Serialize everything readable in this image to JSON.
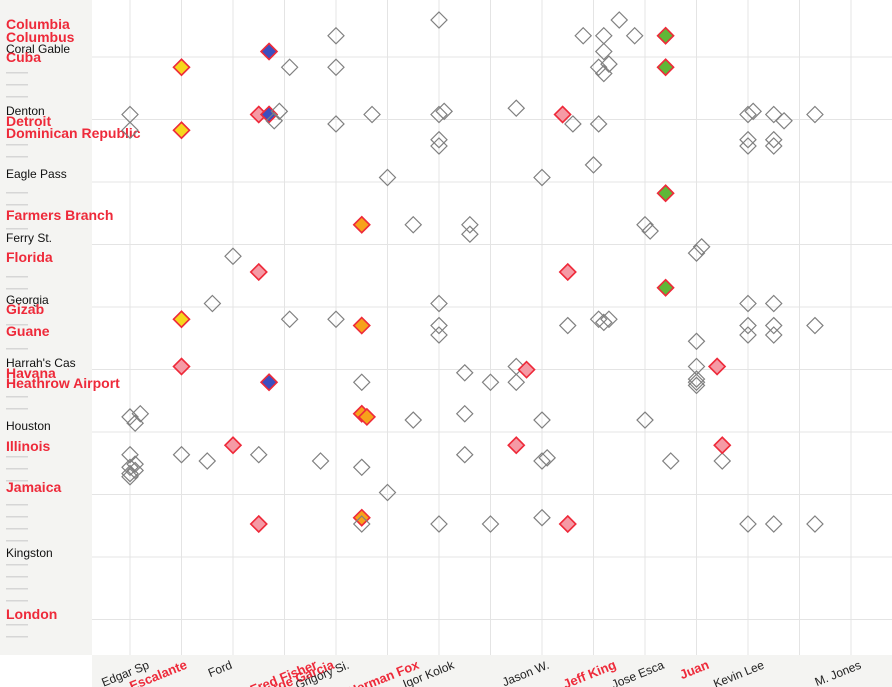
{
  "chart_data": {
    "type": "scatter",
    "title": "",
    "xlabel": "",
    "ylabel": "",
    "grid": true,
    "x_categories": [
      {
        "label": "Edgar Sp",
        "highlight": false
      },
      {
        "label": "Escalante",
        "highlight": true
      },
      {
        "label": "Ford",
        "highlight": false
      },
      {
        "label": "Fred Fisher",
        "highlight": true
      },
      {
        "label": "George Garcia",
        "highlight": true
      },
      {
        "label": "Grigory Si.",
        "highlight": false
      },
      {
        "label": "Herman Fox",
        "highlight": true
      },
      {
        "label": "Igor Kolok",
        "highlight": false
      },
      {
        "label": "Jason W.",
        "highlight": false
      },
      {
        "label": "Jeff King",
        "highlight": true
      },
      {
        "label": "Jose Esca",
        "highlight": false
      },
      {
        "label": "Juan",
        "highlight": true
      },
      {
        "label": "Kevin Lee",
        "highlight": false
      },
      {
        "label": "M. Jones",
        "highlight": false
      }
    ],
    "y_categories": [
      {
        "label": "Columbia",
        "highlight": true
      },
      {
        "label": "Columbus",
        "highlight": true
      },
      {
        "label": "Coral Gable",
        "highlight": false
      },
      {
        "label": "Cuba",
        "highlight": true
      },
      {
        "label": "Denton",
        "highlight": false
      },
      {
        "label": "Detroit",
        "highlight": true
      },
      {
        "label": "Dominican Republic",
        "highlight": true
      },
      {
        "label": "Eagle Pass",
        "highlight": false
      },
      {
        "label": "Farmers Branch",
        "highlight": true
      },
      {
        "label": "Ferry St.",
        "highlight": false
      },
      {
        "label": "Florida",
        "highlight": true
      },
      {
        "label": "Georgia",
        "highlight": false
      },
      {
        "label": "Gizab",
        "highlight": true
      },
      {
        "label": "Guane",
        "highlight": true
      },
      {
        "label": "Harrah's Cas",
        "highlight": false
      },
      {
        "label": "Havana",
        "highlight": true
      },
      {
        "label": "Heathrow Airport",
        "highlight": true
      },
      {
        "label": "Houston",
        "highlight": false
      },
      {
        "label": "Illinois",
        "highlight": true
      },
      {
        "label": "Jamaica",
        "highlight": true
      },
      {
        "label": "Kingston",
        "highlight": false
      },
      {
        "label": "London",
        "highlight": true
      }
    ],
    "colors": {
      "point_outline": "#808080",
      "yellow": "#f6d71c",
      "orange": "#f7a21a",
      "pink": "#f59aa5",
      "blue": "#3c4fc0",
      "green": "#5fb837",
      "highlight_stroke": "#ee2a3a",
      "highlight_text": "#ee2a3a",
      "grid": "#e4e4e4"
    },
    "points": [
      {
        "x": 7.0,
        "y": 0.0,
        "fill": "none"
      },
      {
        "x": 10.5,
        "y": 0.0,
        "fill": "none"
      },
      {
        "x": 5.0,
        "y": 0.5,
        "fill": "none"
      },
      {
        "x": 9.8,
        "y": 0.5,
        "fill": "none"
      },
      {
        "x": 10.2,
        "y": 0.5,
        "fill": "none"
      },
      {
        "x": 10.8,
        "y": 0.5,
        "fill": "none"
      },
      {
        "x": 11.4,
        "y": 0.5,
        "fill": "green"
      },
      {
        "x": 3.7,
        "y": 1.0,
        "fill": "blue"
      },
      {
        "x": 10.2,
        "y": 1.0,
        "fill": "none"
      },
      {
        "x": 2.0,
        "y": 1.5,
        "fill": "yellow"
      },
      {
        "x": 4.1,
        "y": 1.5,
        "fill": "none"
      },
      {
        "x": 5.0,
        "y": 1.5,
        "fill": "none"
      },
      {
        "x": 10.1,
        "y": 1.5,
        "fill": "none"
      },
      {
        "x": 10.3,
        "y": 1.4,
        "fill": "none"
      },
      {
        "x": 10.2,
        "y": 1.7,
        "fill": "none"
      },
      {
        "x": 11.4,
        "y": 1.5,
        "fill": "green"
      },
      {
        "x": 1.0,
        "y": 3.0,
        "fill": "none"
      },
      {
        "x": 3.5,
        "y": 3.0,
        "fill": "pink"
      },
      {
        "x": 3.7,
        "y": 3.0,
        "fill": "blue"
      },
      {
        "x": 3.9,
        "y": 2.9,
        "fill": "none"
      },
      {
        "x": 3.8,
        "y": 3.2,
        "fill": "none"
      },
      {
        "x": 5.0,
        "y": 3.3,
        "fill": "none"
      },
      {
        "x": 5.7,
        "y": 3.0,
        "fill": "none"
      },
      {
        "x": 7.0,
        "y": 3.0,
        "fill": "none"
      },
      {
        "x": 7.1,
        "y": 2.9,
        "fill": "none"
      },
      {
        "x": 8.5,
        "y": 2.8,
        "fill": "none"
      },
      {
        "x": 9.4,
        "y": 3.0,
        "fill": "pink"
      },
      {
        "x": 9.6,
        "y": 3.3,
        "fill": "none"
      },
      {
        "x": 10.1,
        "y": 3.3,
        "fill": "none"
      },
      {
        "x": 13.0,
        "y": 3.0,
        "fill": "none"
      },
      {
        "x": 13.1,
        "y": 2.9,
        "fill": "none"
      },
      {
        "x": 13.5,
        "y": 3.0,
        "fill": "none"
      },
      {
        "x": 13.7,
        "y": 3.2,
        "fill": "none"
      },
      {
        "x": 14.3,
        "y": 3.0,
        "fill": "none"
      },
      {
        "x": 2.0,
        "y": 3.5,
        "fill": "yellow"
      },
      {
        "x": 1.0,
        "y": 3.5,
        "fill": "none"
      },
      {
        "x": 7.0,
        "y": 3.8,
        "fill": "none"
      },
      {
        "x": 7.0,
        "y": 4.0,
        "fill": "none"
      },
      {
        "x": 13.0,
        "y": 3.8,
        "fill": "none"
      },
      {
        "x": 13.5,
        "y": 3.8,
        "fill": "none"
      },
      {
        "x": 13.0,
        "y": 4.0,
        "fill": "none"
      },
      {
        "x": 13.5,
        "y": 4.0,
        "fill": "none"
      },
      {
        "x": 6.0,
        "y": 5.0,
        "fill": "none"
      },
      {
        "x": 9.0,
        "y": 5.0,
        "fill": "none"
      },
      {
        "x": 10.0,
        "y": 4.6,
        "fill": "none"
      },
      {
        "x": 11.4,
        "y": 5.5,
        "fill": "green"
      },
      {
        "x": 5.5,
        "y": 6.5,
        "fill": "orange"
      },
      {
        "x": 6.5,
        "y": 6.5,
        "fill": "none"
      },
      {
        "x": 7.6,
        "y": 6.5,
        "fill": "none"
      },
      {
        "x": 7.6,
        "y": 6.8,
        "fill": "none"
      },
      {
        "x": 11.0,
        "y": 6.5,
        "fill": "none"
      },
      {
        "x": 11.1,
        "y": 6.7,
        "fill": "none"
      },
      {
        "x": 12.1,
        "y": 7.2,
        "fill": "none"
      },
      {
        "x": 12.0,
        "y": 7.4,
        "fill": "none"
      },
      {
        "x": 3.0,
        "y": 7.5,
        "fill": "none"
      },
      {
        "x": 3.5,
        "y": 8.0,
        "fill": "pink"
      },
      {
        "x": 9.5,
        "y": 8.0,
        "fill": "pink"
      },
      {
        "x": 11.4,
        "y": 8.5,
        "fill": "green"
      },
      {
        "x": 2.6,
        "y": 9.0,
        "fill": "none"
      },
      {
        "x": 7.0,
        "y": 9.0,
        "fill": "none"
      },
      {
        "x": 13.0,
        "y": 9.0,
        "fill": "none"
      },
      {
        "x": 13.5,
        "y": 9.0,
        "fill": "none"
      },
      {
        "x": 2.0,
        "y": 9.5,
        "fill": "yellow"
      },
      {
        "x": 4.1,
        "y": 9.5,
        "fill": "none"
      },
      {
        "x": 5.0,
        "y": 9.5,
        "fill": "none"
      },
      {
        "x": 5.5,
        "y": 9.7,
        "fill": "orange"
      },
      {
        "x": 7.0,
        "y": 9.7,
        "fill": "none"
      },
      {
        "x": 7.0,
        "y": 10.0,
        "fill": "none"
      },
      {
        "x": 9.5,
        "y": 9.7,
        "fill": "none"
      },
      {
        "x": 10.1,
        "y": 9.5,
        "fill": "none"
      },
      {
        "x": 10.3,
        "y": 9.5,
        "fill": "none"
      },
      {
        "x": 10.2,
        "y": 9.6,
        "fill": "none"
      },
      {
        "x": 13.0,
        "y": 9.7,
        "fill": "none"
      },
      {
        "x": 13.5,
        "y": 9.7,
        "fill": "none"
      },
      {
        "x": 13.0,
        "y": 10.0,
        "fill": "none"
      },
      {
        "x": 13.5,
        "y": 10.0,
        "fill": "none"
      },
      {
        "x": 14.3,
        "y": 9.7,
        "fill": "none"
      },
      {
        "x": 12.0,
        "y": 10.2,
        "fill": "none"
      },
      {
        "x": 2.0,
        "y": 11.0,
        "fill": "pink"
      },
      {
        "x": 3.7,
        "y": 11.5,
        "fill": "blue"
      },
      {
        "x": 5.5,
        "y": 11.5,
        "fill": "none"
      },
      {
        "x": 7.5,
        "y": 11.2,
        "fill": "none"
      },
      {
        "x": 8.5,
        "y": 11.0,
        "fill": "none"
      },
      {
        "x": 8.7,
        "y": 11.1,
        "fill": "pink"
      },
      {
        "x": 8.0,
        "y": 11.5,
        "fill": "none"
      },
      {
        "x": 8.5,
        "y": 11.5,
        "fill": "none"
      },
      {
        "x": 12.0,
        "y": 11.0,
        "fill": "none"
      },
      {
        "x": 12.0,
        "y": 11.5,
        "fill": "none"
      },
      {
        "x": 12.0,
        "y": 11.6,
        "fill": "none"
      },
      {
        "x": 12.0,
        "y": 11.4,
        "fill": "none"
      },
      {
        "x": 12.4,
        "y": 11.0,
        "fill": "pink"
      },
      {
        "x": 1.0,
        "y": 12.6,
        "fill": "none"
      },
      {
        "x": 1.2,
        "y": 12.5,
        "fill": "none"
      },
      {
        "x": 1.1,
        "y": 12.8,
        "fill": "none"
      },
      {
        "x": 5.5,
        "y": 12.5,
        "fill": "orange"
      },
      {
        "x": 5.6,
        "y": 12.6,
        "fill": "orange"
      },
      {
        "x": 6.5,
        "y": 12.7,
        "fill": "none"
      },
      {
        "x": 7.5,
        "y": 12.5,
        "fill": "none"
      },
      {
        "x": 9.0,
        "y": 12.7,
        "fill": "none"
      },
      {
        "x": 11.0,
        "y": 12.7,
        "fill": "none"
      },
      {
        "x": 1.0,
        "y": 13.8,
        "fill": "none"
      },
      {
        "x": 1.0,
        "y": 14.2,
        "fill": "none"
      },
      {
        "x": 1.1,
        "y": 14.1,
        "fill": "none"
      },
      {
        "x": 1.0,
        "y": 14.4,
        "fill": "none"
      },
      {
        "x": 1.0,
        "y": 14.5,
        "fill": "none"
      },
      {
        "x": 1.1,
        "y": 14.3,
        "fill": "none"
      },
      {
        "x": 2.0,
        "y": 13.8,
        "fill": "none"
      },
      {
        "x": 2.5,
        "y": 14.0,
        "fill": "none"
      },
      {
        "x": 3.0,
        "y": 13.5,
        "fill": "pink"
      },
      {
        "x": 3.5,
        "y": 13.8,
        "fill": "none"
      },
      {
        "x": 4.7,
        "y": 14.0,
        "fill": "none"
      },
      {
        "x": 5.5,
        "y": 14.2,
        "fill": "none"
      },
      {
        "x": 7.5,
        "y": 13.8,
        "fill": "none"
      },
      {
        "x": 8.5,
        "y": 13.5,
        "fill": "pink"
      },
      {
        "x": 9.0,
        "y": 14.0,
        "fill": "none"
      },
      {
        "x": 9.1,
        "y": 13.9,
        "fill": "none"
      },
      {
        "x": 11.5,
        "y": 14.0,
        "fill": "none"
      },
      {
        "x": 12.5,
        "y": 14.0,
        "fill": "none"
      },
      {
        "x": 12.5,
        "y": 13.5,
        "fill": "pink"
      },
      {
        "x": 6.0,
        "y": 15.0,
        "fill": "none"
      },
      {
        "x": 3.5,
        "y": 16.0,
        "fill": "pink"
      },
      {
        "x": 5.5,
        "y": 15.8,
        "fill": "orange"
      },
      {
        "x": 7.0,
        "y": 16.0,
        "fill": "none"
      },
      {
        "x": 8.0,
        "y": 16.0,
        "fill": "none"
      },
      {
        "x": 9.0,
        "y": 15.8,
        "fill": "none"
      },
      {
        "x": 9.5,
        "y": 16.0,
        "fill": "pink"
      },
      {
        "x": 5.5,
        "y": 16.0,
        "fill": "none"
      },
      {
        "x": 13.0,
        "y": 16.0,
        "fill": "none"
      },
      {
        "x": 13.5,
        "y": 16.0,
        "fill": "none"
      },
      {
        "x": 14.3,
        "y": 16.0,
        "fill": "none"
      }
    ]
  }
}
